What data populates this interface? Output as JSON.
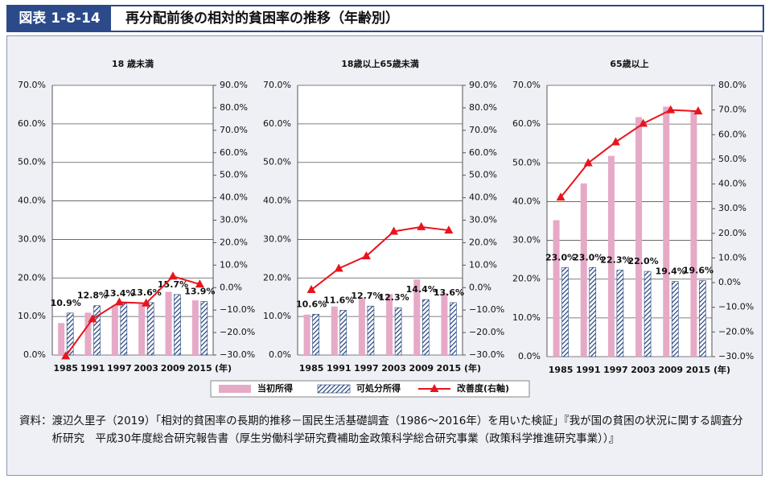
{
  "header": {
    "figure": "図表 1-8-14",
    "title": "再分配前後の相対的貧困率の推移（年齢別）"
  },
  "source": {
    "label": "資料：",
    "text": "渡辺久里子（2019）「相対的貧困率の長期的推移－国民生活基礎調査（1986～2016年）を用いた検証」『我が国の貧困の状況に関する調査分析研究　平成30年度総合研究報告書（厚生労働科学研究費補助金政策科学総合研究事業（政策科学推進研究事業））』"
  },
  "chart_data": [
    {
      "type": "bar",
      "title": "18 歳未満",
      "xlabel": "(年)",
      "categories": [
        "1985",
        "1991",
        "1997",
        "2003",
        "2009",
        "2015"
      ],
      "series": [
        {
          "name": "当初所得",
          "color": "#e6a9c6",
          "values": [
            8.3,
            11.0,
            12.9,
            13.3,
            16.4,
            14.2
          ]
        },
        {
          "name": "可処分所得",
          "color": "#1f3f7a",
          "pattern": "hatch",
          "values": [
            10.9,
            12.8,
            13.4,
            13.6,
            15.7,
            13.9
          ],
          "value_labels": [
            "10.9%",
            "12.8%",
            "13.4%",
            "13.6%",
            "15.7%",
            "13.9%"
          ]
        },
        {
          "name": "改善度(右軸)",
          "color": "#e8141c",
          "axis": "y2",
          "type": "line",
          "values": [
            -30.5,
            -14,
            -6.5,
            -7,
            5,
            1.5
          ]
        }
      ],
      "ylim": [
        0,
        70
      ],
      "yticks": [
        {
          "value": 0,
          "label": "0.0%"
        },
        {
          "value": 10,
          "label": "10.0%"
        },
        {
          "value": 20,
          "label": "20.0%"
        },
        {
          "value": 30,
          "label": "30.0%"
        },
        {
          "value": 40,
          "label": "40.0%"
        },
        {
          "value": 50,
          "label": "50.0%"
        },
        {
          "value": 60,
          "label": "60.0%"
        },
        {
          "value": 70,
          "label": "70.0%"
        }
      ],
      "y2lim": [
        -30,
        90
      ],
      "y2ticks": [
        {
          "value": -30,
          "label": "−30.0%"
        },
        {
          "value": -20,
          "label": "−20.0%"
        },
        {
          "value": -10,
          "label": "−10.0%"
        },
        {
          "value": 0,
          "label": "0.0%"
        },
        {
          "value": 10,
          "label": "10.0%"
        },
        {
          "value": 20,
          "label": "20.0%"
        },
        {
          "value": 30,
          "label": "30.0%"
        },
        {
          "value": 40,
          "label": "40.0%"
        },
        {
          "value": 50,
          "label": "50.0%"
        },
        {
          "value": 60,
          "label": "60.0%"
        },
        {
          "value": 70,
          "label": "70.0%"
        },
        {
          "value": 80,
          "label": "80.0%"
        },
        {
          "value": 90,
          "label": "90.0%"
        }
      ]
    },
    {
      "type": "bar",
      "title": "18歳以上65歳未満",
      "xlabel": "(年)",
      "categories": [
        "1985",
        "1991",
        "1997",
        "2003",
        "2009",
        "2015"
      ],
      "series": [
        {
          "name": "当初所得",
          "color": "#e6a9c6",
          "values": [
            10.5,
            12.6,
            14.6,
            15.8,
            19.6,
            16.0
          ]
        },
        {
          "name": "可処分所得",
          "color": "#1f3f7a",
          "pattern": "hatch",
          "values": [
            10.6,
            11.6,
            12.7,
            12.3,
            14.4,
            13.6
          ],
          "value_labels": [
            "10.6%",
            "11.6%",
            "12.7%",
            "12.3%",
            "14.4%",
            "13.6%"
          ]
        },
        {
          "name": "改善度(右軸)",
          "color": "#e8141c",
          "axis": "y2",
          "type": "line",
          "values": [
            -1,
            8.5,
            14,
            25,
            27,
            25.5
          ]
        }
      ],
      "ylim": [
        0,
        70
      ],
      "yticks": [
        {
          "value": 0,
          "label": "0.0%"
        },
        {
          "value": 10,
          "label": "10.0%"
        },
        {
          "value": 20,
          "label": "20.0%"
        },
        {
          "value": 30,
          "label": "30.0%"
        },
        {
          "value": 40,
          "label": "40.0%"
        },
        {
          "value": 50,
          "label": "50.0%"
        },
        {
          "value": 60,
          "label": "60.0%"
        },
        {
          "value": 70,
          "label": "70.0%"
        }
      ],
      "y2lim": [
        -30,
        90
      ],
      "y2ticks": [
        {
          "value": -30,
          "label": "−30.0%"
        },
        {
          "value": -20,
          "label": "−20.0%"
        },
        {
          "value": -10,
          "label": "−10.0%"
        },
        {
          "value": 0,
          "label": "0.0%"
        },
        {
          "value": 10,
          "label": "10.0%"
        },
        {
          "value": 20,
          "label": "20.0%"
        },
        {
          "value": 30,
          "label": "30.0%"
        },
        {
          "value": 40,
          "label": "40.0%"
        },
        {
          "value": 50,
          "label": "50.0%"
        },
        {
          "value": 60,
          "label": "60.0%"
        },
        {
          "value": 70,
          "label": "70.0%"
        },
        {
          "value": 80,
          "label": "80.0%"
        },
        {
          "value": 90,
          "label": "90.0%"
        }
      ]
    },
    {
      "type": "bar",
      "title": "65歳以上",
      "xlabel": "(年)",
      "categories": [
        "1985",
        "1991",
        "1997",
        "2003",
        "2009",
        "2015"
      ],
      "series": [
        {
          "name": "当初所得",
          "color": "#e6a9c6",
          "values": [
            35.2,
            44.7,
            51.8,
            61.8,
            64.5,
            63.5
          ]
        },
        {
          "name": "可処分所得",
          "color": "#1f3f7a",
          "pattern": "hatch",
          "values": [
            23.0,
            23.0,
            22.3,
            22.0,
            19.4,
            19.6
          ],
          "value_labels": [
            "23.0%",
            "23.0%",
            "22.3%",
            "22.0%",
            "19.4%",
            "19.6%"
          ]
        },
        {
          "name": "改善度(右軸)",
          "color": "#e8141c",
          "axis": "y2",
          "type": "line",
          "values": [
            34.6,
            48.5,
            57,
            64.5,
            70,
            69.5
          ]
        }
      ],
      "ylim": [
        0,
        70
      ],
      "yticks": [
        {
          "value": 0,
          "label": "0.0%"
        },
        {
          "value": 10,
          "label": "10.0%"
        },
        {
          "value": 20,
          "label": "20.0%"
        },
        {
          "value": 30,
          "label": "30.0%"
        },
        {
          "value": 40,
          "label": "40.0%"
        },
        {
          "value": 50,
          "label": "50.0%"
        },
        {
          "value": 60,
          "label": "60.0%"
        },
        {
          "value": 70,
          "label": "70.0%"
        }
      ],
      "y2lim": [
        -30,
        80
      ],
      "y2ticks": [
        {
          "value": -30,
          "label": "−30.0%"
        },
        {
          "value": -20,
          "label": "−20.0%"
        },
        {
          "value": -10,
          "label": "−10.0%"
        },
        {
          "value": 0,
          "label": "0.0%"
        },
        {
          "value": 10,
          "label": "10.0%"
        },
        {
          "value": 20,
          "label": "20.0%"
        },
        {
          "value": 30,
          "label": "30.0%"
        },
        {
          "value": 40,
          "label": "40.0%"
        },
        {
          "value": 50,
          "label": "50.0%"
        },
        {
          "value": 60,
          "label": "60.0%"
        },
        {
          "value": 70,
          "label": "70.0%"
        },
        {
          "value": 80,
          "label": "80.0%"
        }
      ]
    }
  ]
}
